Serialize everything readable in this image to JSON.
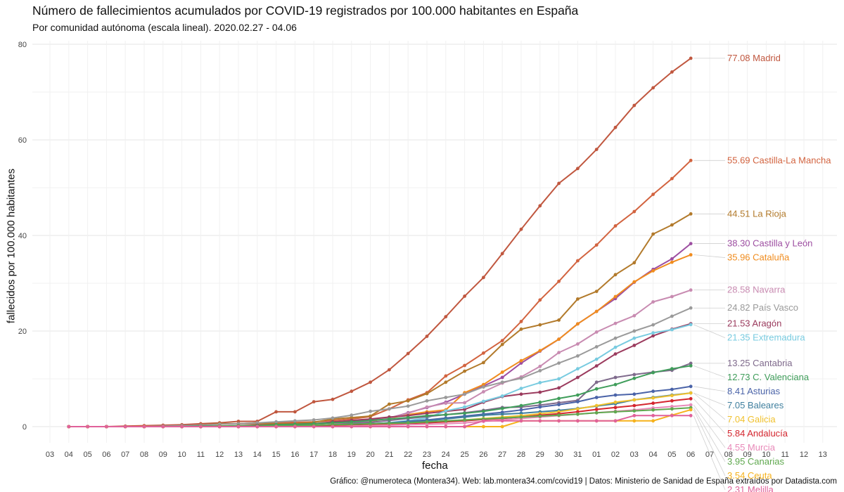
{
  "title": "Número de fallecimientos acumulados por COVID-19 registrados por 100.000 habitantes en España",
  "subtitle": "Por comunidad autónoma (escala lineal). 2020.02.27 - 04.06",
  "caption": "Gráfico: @numeroteca (Montera34). Web: lab.montera34.com/covid19 | Datos: Ministerio de Sanidad de España extraídos por Datadista.com",
  "chart_data": {
    "type": "line",
    "title": "Número de fallecimientos acumulados por COVID-19 registrados por 100.000 habitantes en España",
    "subtitle": "Por comunidad autónoma (escala lineal). 2020.02.27 - 04.06",
    "xlabel": "fecha",
    "ylabel": "fallecidos por 100.000 habitantes",
    "ylim": [
      0,
      80
    ],
    "yticks": [
      0,
      20,
      40,
      60,
      80
    ],
    "x_ticks": [
      "03",
      "04",
      "05",
      "06",
      "07",
      "08",
      "09",
      "10",
      "11",
      "12",
      "13",
      "14",
      "15",
      "16",
      "17",
      "18",
      "19",
      "20",
      "21",
      "22",
      "23",
      "24",
      "25",
      "26",
      "27",
      "28",
      "29",
      "30",
      "31",
      "01",
      "02",
      "03",
      "04",
      "05",
      "06",
      "07",
      "08",
      "09",
      "10",
      "11",
      "12",
      "13"
    ],
    "x_data_start_index": 1,
    "x_dates": [
      "2020-03-04",
      "2020-03-05",
      "2020-03-06",
      "2020-03-07",
      "2020-03-08",
      "2020-03-09",
      "2020-03-10",
      "2020-03-11",
      "2020-03-12",
      "2020-03-13",
      "2020-03-14",
      "2020-03-15",
      "2020-03-16",
      "2020-03-17",
      "2020-03-18",
      "2020-03-19",
      "2020-03-20",
      "2020-03-21",
      "2020-03-22",
      "2020-03-23",
      "2020-03-24",
      "2020-03-25",
      "2020-03-26",
      "2020-03-27",
      "2020-03-28",
      "2020-03-29",
      "2020-03-30",
      "2020-03-31",
      "2020-04-01",
      "2020-04-02",
      "2020-04-03",
      "2020-04-04",
      "2020-04-05",
      "2020-04-06"
    ],
    "grid": true,
    "legend": "direct labels at end of lines",
    "series": [
      {
        "name": "Madrid",
        "label": "77.08 Madrid",
        "color": "#c0573f",
        "values": [
          0,
          0,
          0,
          0.1,
          0.2,
          0.3,
          0.4,
          0.6,
          0.8,
          1.1,
          1.1,
          3.1,
          3.1,
          5.2,
          5.7,
          7.4,
          9.3,
          11.9,
          15.3,
          18.9,
          23,
          27.3,
          31.2,
          36.2,
          41.3,
          46.2,
          50.9,
          54,
          58,
          62.6,
          67.2,
          70.9,
          74.2,
          77.08
        ]
      },
      {
        "name": "Castilla-La Mancha",
        "label": "55.69 Castilla-La Mancha",
        "color": "#d2633f",
        "values": [
          0,
          0,
          0,
          0,
          0.1,
          0.1,
          0.2,
          0.3,
          0.5,
          0.6,
          0.8,
          0.8,
          0.9,
          1,
          1.3,
          1.6,
          2.1,
          3.7,
          5.6,
          7.1,
          10.6,
          12.8,
          15.4,
          18,
          22,
          26.5,
          30.4,
          34.7,
          38,
          42,
          45,
          48.6,
          51.9,
          55.69
        ]
      },
      {
        "name": "La Rioja",
        "label": "44.51 La Rioja",
        "color": "#b27a2b",
        "values": [
          0,
          0,
          0,
          0,
          0,
          0,
          0.1,
          0.3,
          0.6,
          0.6,
          0.6,
          0.6,
          0.6,
          0.9,
          1.6,
          1.9,
          2.2,
          4.7,
          5.4,
          6.9,
          9.3,
          11.6,
          13.4,
          17.2,
          20.4,
          21.3,
          22.3,
          26.7,
          28.3,
          31.8,
          34.3,
          40.3,
          42.2,
          44.51
        ]
      },
      {
        "name": "Castilla y León",
        "label": "38.30 Castilla y León",
        "color": "#9d4ea1",
        "values": [
          0,
          0,
          0,
          0,
          0,
          0,
          0,
          0.1,
          0.1,
          0.2,
          0.3,
          0.3,
          0.4,
          0.6,
          0.8,
          1.2,
          1.4,
          1.8,
          2.9,
          4,
          5.1,
          6.8,
          8.5,
          10.3,
          13.3,
          15.8,
          18.3,
          21.5,
          24.1,
          26.8,
          30.2,
          32.9,
          35.1,
          38.3
        ]
      },
      {
        "name": "Cataluña",
        "label": "35.96 Cataluña",
        "color": "#f08c1e",
        "values": [
          0,
          0,
          0,
          0,
          0,
          0,
          0,
          0,
          0.1,
          0.1,
          0.2,
          0.3,
          0.3,
          0.6,
          0.8,
          0.9,
          1.1,
          1.8,
          2.5,
          3.1,
          3.5,
          7.1,
          8.8,
          11.4,
          13.8,
          15.9,
          18.3,
          21.5,
          24.1,
          27.2,
          30.3,
          32.6,
          34.4,
          35.96
        ]
      },
      {
        "name": "Navarra",
        "label": "28.58 Navarra",
        "color": "#c88bb1",
        "values": [
          0,
          0,
          0,
          0,
          0,
          0,
          0,
          0,
          0,
          0,
          0,
          0,
          0,
          0.2,
          0.5,
          0.8,
          1.2,
          1.8,
          2.8,
          4.1,
          4.9,
          5,
          7.3,
          9.1,
          10.4,
          12.6,
          15.5,
          17.3,
          19.8,
          21.6,
          23.2,
          26.1,
          27.2,
          28.58
        ]
      },
      {
        "name": "País Vasco",
        "label": "24.82 País Vasco",
        "color": "#9a9a9a",
        "values": [
          0,
          0,
          0,
          0,
          0,
          0.1,
          0.2,
          0.3,
          0.5,
          0.6,
          0.8,
          1,
          1.2,
          1.4,
          1.8,
          2.4,
          3.2,
          3.7,
          4.3,
          5.4,
          6.1,
          6.8,
          8.3,
          9.3,
          10.1,
          11.7,
          13.3,
          14.8,
          16.7,
          18.5,
          20,
          21.3,
          23.1,
          24.82
        ]
      },
      {
        "name": "Aragón",
        "label": "21.53 Aragón",
        "color": "#9b3b5e",
        "values": [
          0,
          0,
          0,
          0,
          0,
          0,
          0,
          0,
          0,
          0.1,
          0.3,
          0.4,
          0.5,
          0.6,
          1,
          1.3,
          1.6,
          2,
          2.3,
          2.8,
          3.2,
          3.6,
          5.1,
          6.3,
          6.8,
          7.2,
          8.1,
          10.3,
          12.7,
          15.2,
          17,
          19,
          20.4,
          21.53
        ]
      },
      {
        "name": "Extremadura",
        "label": "21.35 Extremadura",
        "color": "#78cbe0",
        "values": [
          0,
          0,
          0,
          0,
          0,
          0,
          0,
          0,
          0,
          0,
          0,
          0,
          0,
          0.1,
          0.2,
          0.4,
          0.5,
          0.8,
          1.3,
          1.8,
          3.3,
          4.1,
          5.3,
          6.4,
          8,
          9.2,
          10,
          12.1,
          14.1,
          16.6,
          18.5,
          19.6,
          20.3,
          21.35
        ]
      },
      {
        "name": "Cantabria",
        "label": "13.25 Cantabria",
        "color": "#7f6a8c",
        "values": [
          0,
          0,
          0,
          0,
          0,
          0,
          0,
          0,
          0,
          0,
          0,
          0.1,
          0.2,
          0.3,
          0.4,
          0.7,
          0.9,
          1.3,
          1.7,
          2.1,
          2.5,
          2.9,
          3.4,
          4,
          4.1,
          4.5,
          5,
          5.5,
          9.3,
          10.3,
          10.9,
          11.4,
          11.8,
          13.25
        ]
      },
      {
        "name": "C. Valenciana",
        "label": "12.73 C. Valenciana",
        "color": "#3f9d5a",
        "values": [
          0,
          0,
          0,
          0,
          0,
          0,
          0,
          0.1,
          0.1,
          0.2,
          0.2,
          0.4,
          0.5,
          0.6,
          0.8,
          1,
          1.3,
          1.6,
          1.9,
          2.3,
          2.5,
          2.8,
          3.2,
          3.8,
          4.4,
          5.1,
          5.9,
          6.6,
          7.9,
          8.8,
          10.1,
          11.3,
          12.1,
          12.73
        ]
      },
      {
        "name": "Asturias",
        "label": "8.41 Asturias",
        "color": "#4a63a8",
        "values": [
          0,
          0,
          0,
          0,
          0,
          0,
          0,
          0,
          0,
          0,
          0,
          0,
          0.1,
          0.2,
          0.3,
          0.5,
          0.6,
          0.8,
          1.1,
          1.4,
          1.8,
          2.2,
          2.6,
          3,
          3.5,
          4.1,
          4.6,
          5.2,
          6.1,
          6.6,
          6.8,
          7.4,
          7.8,
          8.41
        ]
      },
      {
        "name": "Baleares",
        "label": "7.05 Baleares",
        "color": "#3f7f9e",
        "values": [
          0,
          0,
          0,
          0,
          0,
          0,
          0,
          0,
          0,
          0,
          0.1,
          0.1,
          0.1,
          0.2,
          0.3,
          0.4,
          0.6,
          0.8,
          1,
          1.2,
          1.6,
          2,
          2.4,
          2.6,
          2.8,
          3.1,
          3.4,
          3.8,
          4.3,
          4.8,
          5.6,
          6.1,
          6.6,
          7.05
        ]
      },
      {
        "name": "Galicia",
        "label": "7.04 Galicia",
        "color": "#f0c12e",
        "values": [
          0,
          0,
          0,
          0,
          0,
          0,
          0,
          0,
          0,
          0,
          0,
          0,
          0,
          0.1,
          0.2,
          0.3,
          0.4,
          0.5,
          0.7,
          0.9,
          1.2,
          1.4,
          1.7,
          2,
          2.3,
          2.7,
          3.1,
          3.7,
          4.4,
          5.1,
          5.6,
          6,
          6.5,
          7.04
        ]
      },
      {
        "name": "Andalucía",
        "label": "5.84 Andalucía",
        "color": "#d4262f",
        "values": [
          0,
          0,
          0,
          0,
          0,
          0,
          0,
          0,
          0,
          0.1,
          0.1,
          0.1,
          0.1,
          0.2,
          0.3,
          0.4,
          0.5,
          0.6,
          0.7,
          0.8,
          1,
          1.2,
          1.5,
          1.7,
          2,
          2.4,
          2.7,
          3.1,
          3.6,
          4,
          4.4,
          4.9,
          5.4,
          5.84
        ]
      },
      {
        "name": "Murcia",
        "label": "4.55 Murcia",
        "color": "#e88ab9",
        "values": [
          0,
          0,
          0,
          0,
          0,
          0,
          0,
          0,
          0,
          0,
          0,
          0,
          0,
          0,
          0,
          0.1,
          0.2,
          0.3,
          0.4,
          0.5,
          0.6,
          0.8,
          1.1,
          1.4,
          1.7,
          2,
          2.3,
          2.6,
          2.9,
          3.2,
          3.5,
          3.9,
          4.2,
          4.55
        ]
      },
      {
        "name": "Canarias",
        "label": "3.95 Canarias",
        "color": "#5fa84e",
        "values": [
          0,
          0,
          0,
          0,
          0,
          0,
          0,
          0,
          0.1,
          0.1,
          0.1,
          0.2,
          0.2,
          0.3,
          0.4,
          0.5,
          0.6,
          0.7,
          0.8,
          1,
          1.2,
          1.4,
          1.6,
          1.8,
          2,
          2.2,
          2.4,
          2.6,
          2.9,
          3.1,
          3.3,
          3.5,
          3.7,
          3.95
        ]
      },
      {
        "name": "Ceuta",
        "label": "3.54 Ceuta",
        "color": "#f6b21c",
        "values": [
          0,
          0,
          0,
          0,
          0,
          0,
          0,
          0,
          0,
          0,
          0,
          0,
          0,
          0,
          0,
          0,
          0,
          0,
          0,
          0,
          0,
          0,
          0,
          0,
          1.2,
          1.2,
          1.2,
          1.2,
          1.2,
          1.2,
          1.2,
          1.2,
          2.4,
          3.54
        ]
      },
      {
        "name": "Melilla",
        "label": "2.31 Melilla",
        "color": "#e0619a",
        "values": [
          0,
          0,
          0,
          0,
          0,
          0,
          0,
          0,
          0,
          0,
          0,
          0,
          0,
          0,
          0,
          0,
          0,
          0,
          0,
          0,
          0,
          0,
          1.2,
          1.2,
          1.2,
          1.2,
          1.2,
          1.2,
          1.2,
          1.2,
          2.31,
          2.31,
          2.31,
          2.31
        ]
      }
    ]
  }
}
